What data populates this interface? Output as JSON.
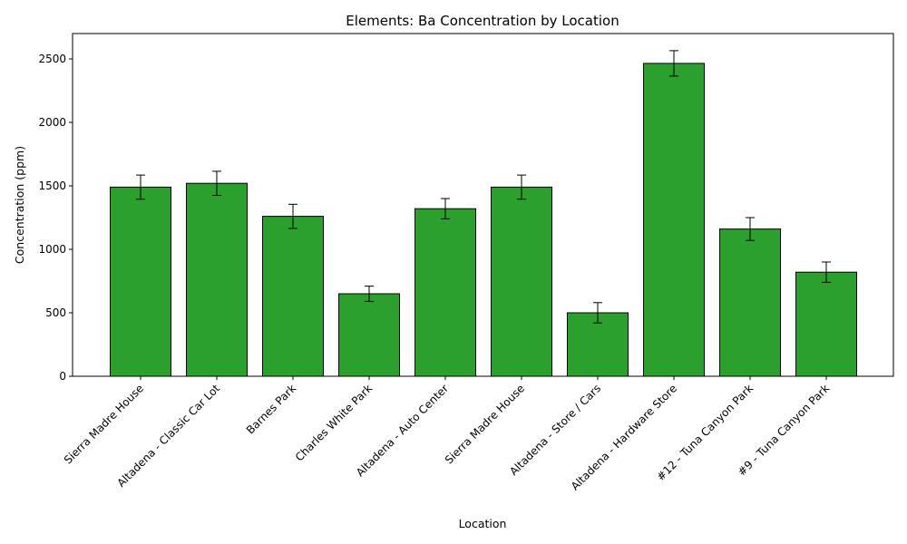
{
  "chart_data": {
    "type": "bar",
    "title": "Elements: Ba Concentration by Location",
    "xlabel": "Location",
    "ylabel": "Concentration (ppm)",
    "ylim": [
      0,
      2700
    ],
    "yticks": [
      0,
      500,
      1000,
      1500,
      2000,
      2500
    ],
    "categories": [
      "Sierra Madre House",
      "Altadena - Classic Car Lot",
      "Barnes Park",
      "Charles White Park",
      "Altadena - Auto Center",
      "Sierra Madre House",
      "Altadena - Store / Cars",
      "Altadena - Hardware Store",
      "#12 - Tuna Canyon Park",
      "#9 - Tuna Canyon Park"
    ],
    "values": [
      1490,
      1520,
      1260,
      650,
      1320,
      1490,
      500,
      2465,
      1160,
      820
    ],
    "errors": [
      95,
      95,
      95,
      60,
      80,
      95,
      80,
      100,
      90,
      80
    ],
    "bar_color": "#2ca02c",
    "edge_color": "#000000",
    "grid": false,
    "legend": "none"
  }
}
